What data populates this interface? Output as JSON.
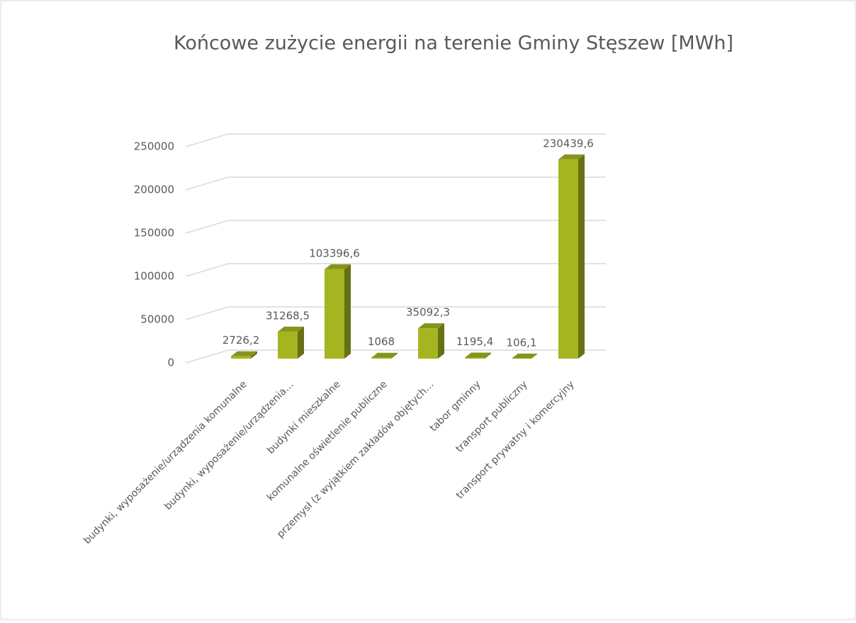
{
  "chart_data": {
    "type": "bar3d",
    "title": "Końcowe zużycie energii na terenie Gminy Stęszew [MWh]",
    "categories": [
      "budynki, wyposażenie/urządzenia komunalne",
      "budynki, wyposażenie/urządzenia…",
      "budynki mieszkalne",
      "komunalne oświetlenie publiczne",
      "przemysł (z wyjątkiem zakładów objętych…",
      "tabor gminny",
      "transport publiczny",
      "transport prywatny i komercyjny"
    ],
    "values": [
      2726.2,
      31268.5,
      103396.6,
      1068,
      35092.3,
      1195.4,
      106.1,
      230439.6
    ],
    "value_labels": [
      "2726,2",
      "31268,5",
      "103396,6",
      "1068",
      "35092,3",
      "1195,4",
      "106,1",
      "230439,6"
    ],
    "color": "#a5b521",
    "ylim": [
      0,
      250000
    ],
    "yticks": [
      0,
      50000,
      100000,
      150000,
      200000,
      250000
    ],
    "grid": true
  }
}
